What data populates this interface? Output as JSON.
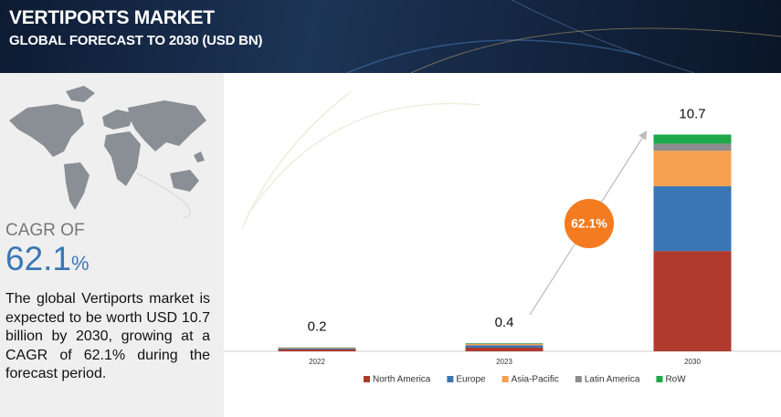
{
  "header": {
    "title": "VERTIPORTS MARKET",
    "subtitle": "GLOBAL FORECAST TO 2030 (USD BN)"
  },
  "sidebar": {
    "cagr_label": "CAGR OF",
    "cagr_number": "62.1",
    "cagr_unit": "%",
    "description": "The global Vertiports market is expected to be worth USD 10.7 billion by 2030, growing at a CAGR of 62.1% during the forecast period."
  },
  "chart_data": {
    "type": "stacked-bar",
    "categories": [
      "2022",
      "2023",
      "2030"
    ],
    "totals": [
      0.2,
      0.4,
      10.7
    ],
    "cagr_badge": "62.1%",
    "series": [
      {
        "name": "North America",
        "color": "#b03a2e",
        "values": [
          0.09,
          0.18,
          4.95
        ]
      },
      {
        "name": "Europe",
        "color": "#3a76b5",
        "values": [
          0.06,
          0.12,
          3.2
        ]
      },
      {
        "name": "Asia-Pacific",
        "color": "#f4a04e",
        "values": [
          0.03,
          0.06,
          1.75
        ]
      },
      {
        "name": "Latin America",
        "color": "#8c8c8c",
        "values": [
          0.01,
          0.02,
          0.35
        ]
      },
      {
        "name": "RoW",
        "color": "#1fa84a",
        "values": [
          0.01,
          0.02,
          0.45
        ]
      }
    ]
  }
}
